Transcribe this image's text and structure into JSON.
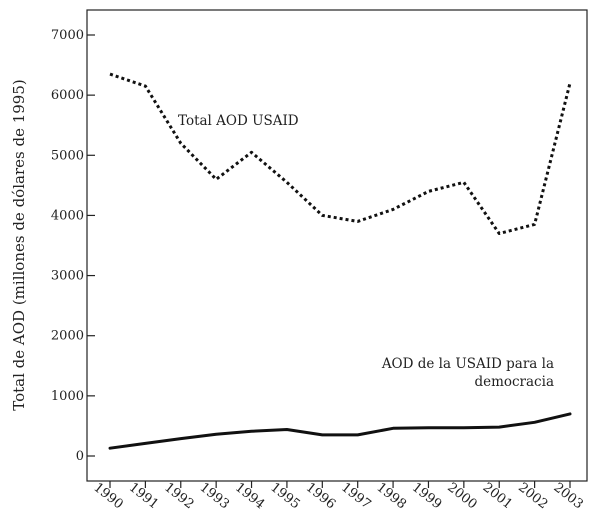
{
  "chart_data": {
    "type": "line",
    "title": "",
    "xlabel": "",
    "ylabel": "Total de AOD (millones de dólares de 1995)",
    "x": [
      "1990",
      "1991",
      "1992",
      "1993",
      "1994",
      "1995",
      "1996",
      "1997",
      "1998",
      "1999",
      "2000",
      "2001",
      "2002",
      "2003"
    ],
    "ylim": [
      0,
      7000
    ],
    "yticks": [
      0,
      1000,
      2000,
      3000,
      4000,
      5000,
      6000,
      7000
    ],
    "grid": false,
    "series": [
      {
        "name": "Total AOD USAID",
        "style": "dotted",
        "values": [
          6350,
          6150,
          5200,
          4600,
          5050,
          4550,
          4000,
          3900,
          4100,
          4400,
          4550,
          3700,
          3850,
          6200
        ]
      },
      {
        "name": "AOD de la USAID para la democracia",
        "style": "solid",
        "values": [
          130,
          210,
          290,
          360,
          410,
          440,
          350,
          350,
          460,
          470,
          470,
          480,
          560,
          700
        ]
      }
    ],
    "annotations": [
      {
        "text": "Total AOD USAID",
        "series": 0
      },
      {
        "text": "AOD de la USAID para la",
        "series": 1
      },
      {
        "text": "democracia",
        "series": 1
      }
    ]
  }
}
